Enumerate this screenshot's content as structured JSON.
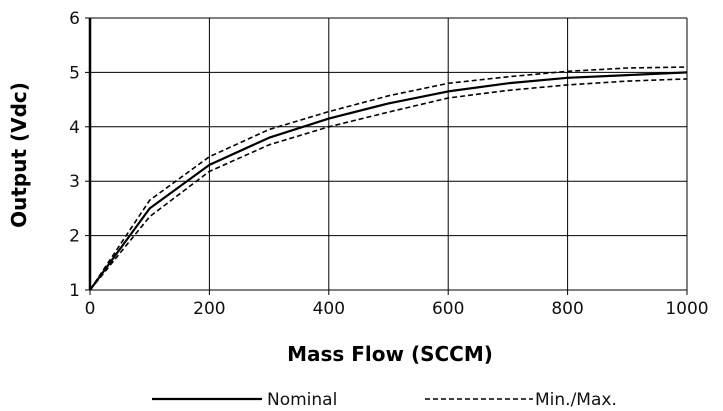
{
  "chart_data": {
    "type": "line",
    "xlabel": "Mass Flow (SCCM)",
    "ylabel": "Output (Vdc)",
    "xlim": [
      0,
      1000
    ],
    "ylim": [
      1,
      6
    ],
    "xticks": [
      0,
      200,
      400,
      600,
      800,
      1000
    ],
    "yticks": [
      1,
      2,
      3,
      4,
      5,
      6
    ],
    "grid": true,
    "legend_position": "bottom",
    "series": [
      {
        "name": "Nominal",
        "style": "solid",
        "color": "#000000",
        "x": [
          0,
          100,
          200,
          300,
          400,
          500,
          600,
          700,
          800,
          900,
          1000
        ],
        "y": [
          1.0,
          2.5,
          3.3,
          3.8,
          4.15,
          4.43,
          4.65,
          4.8,
          4.9,
          4.95,
          5.0
        ]
      },
      {
        "name": "Min./Max.",
        "style": "dashed",
        "color": "#000000",
        "x": [
          0,
          100,
          200,
          300,
          400,
          500,
          600,
          700,
          800,
          900,
          1000
        ],
        "y": [
          1.0,
          2.65,
          3.45,
          3.95,
          4.28,
          4.57,
          4.8,
          4.92,
          5.02,
          5.08,
          5.1
        ]
      },
      {
        "name": "",
        "style": "dashed",
        "color": "#000000",
        "x": [
          0,
          100,
          200,
          300,
          400,
          500,
          600,
          700,
          800,
          900,
          1000
        ],
        "y": [
          1.0,
          2.35,
          3.18,
          3.67,
          4.0,
          4.27,
          4.53,
          4.67,
          4.77,
          4.84,
          4.88
        ]
      }
    ]
  }
}
